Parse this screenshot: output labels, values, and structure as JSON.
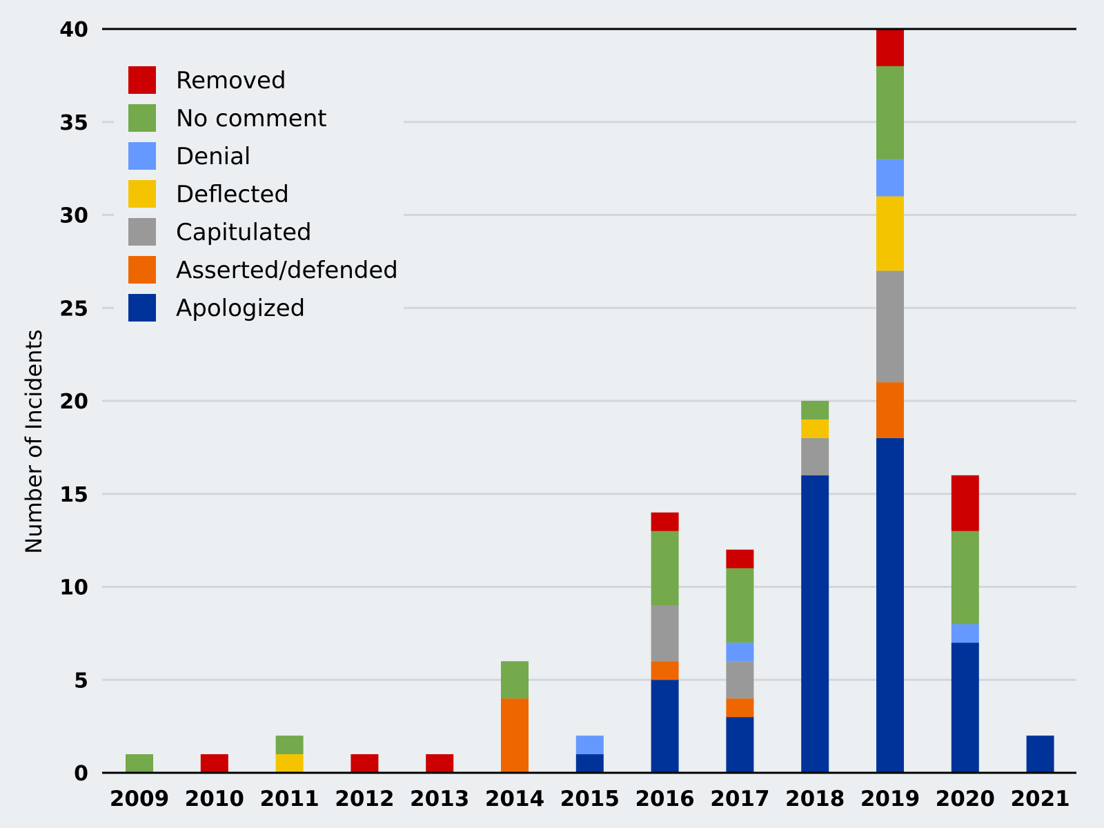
{
  "chart_data": {
    "type": "bar",
    "stacked": true,
    "title": "",
    "xlabel": "",
    "ylabel": "Number of Incidents",
    "ylim": [
      0,
      40
    ],
    "yticks": [
      0,
      5,
      10,
      15,
      20,
      25,
      30,
      35,
      40
    ],
    "grid": true,
    "legend_position": "top-left",
    "categories": [
      "2009",
      "2010",
      "2011",
      "2012",
      "2013",
      "2014",
      "2015",
      "2016",
      "2017",
      "2018",
      "2019",
      "2020",
      "2021"
    ],
    "series": [
      {
        "name": "Apologized",
        "color": "#003399",
        "values": [
          0,
          0,
          0,
          0,
          0,
          0,
          1,
          5,
          3,
          16,
          18,
          7,
          2
        ]
      },
      {
        "name": "Asserted/defended",
        "color": "#ee6600",
        "values": [
          0,
          0,
          0,
          0,
          0,
          4,
          0,
          1,
          1,
          0,
          3,
          0,
          0
        ]
      },
      {
        "name": "Capitulated",
        "color": "#999999",
        "values": [
          0,
          0,
          0,
          0,
          0,
          0,
          0,
          3,
          2,
          2,
          6,
          0,
          0
        ]
      },
      {
        "name": "Deflected",
        "color": "#f5c400",
        "values": [
          0,
          0,
          1,
          0,
          0,
          0,
          0,
          0,
          0,
          1,
          4,
          0,
          0
        ]
      },
      {
        "name": "Denial",
        "color": "#6699ff",
        "values": [
          0,
          0,
          0,
          0,
          0,
          0,
          1,
          0,
          1,
          0,
          2,
          1,
          0
        ]
      },
      {
        "name": "No comment",
        "color": "#74a94c",
        "values": [
          1,
          0,
          1,
          0,
          0,
          2,
          0,
          4,
          4,
          1,
          5,
          5,
          0
        ]
      },
      {
        "name": "Removed",
        "color": "#cc0000",
        "values": [
          0,
          1,
          0,
          1,
          1,
          0,
          0,
          1,
          1,
          0,
          2,
          3,
          0
        ]
      }
    ],
    "legend_order": [
      "Removed",
      "No comment",
      "Denial",
      "Deflected",
      "Capitulated",
      "Asserted/defended",
      "Apologized"
    ]
  }
}
